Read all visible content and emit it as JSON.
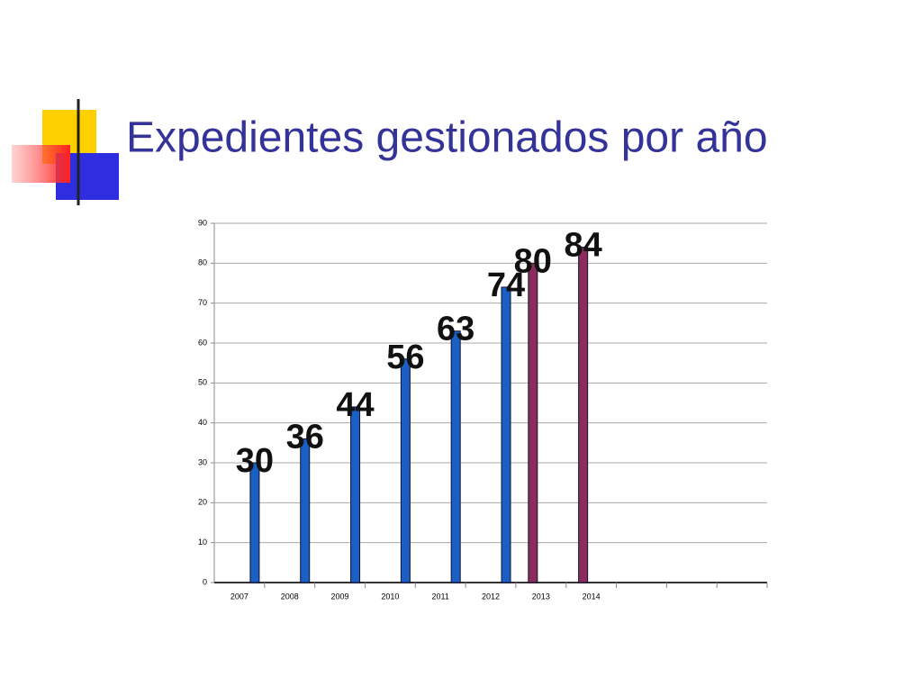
{
  "chart_data": {
    "type": "bar",
    "title": "Expedientes gestionados por año",
    "categories": [
      "2007",
      "2008",
      "2009",
      "2010",
      "2011",
      "2012",
      "2013",
      "2014",
      null,
      null,
      null
    ],
    "series": [
      {
        "color": "#8b2d5c",
        "values": [
          null,
          null,
          null,
          null,
          null,
          null,
          80,
          84,
          null,
          null,
          null
        ]
      },
      {
        "color": "#1a5fc4",
        "values": [
          30,
          36,
          44,
          56,
          63,
          74,
          null,
          null,
          null,
          null,
          null
        ]
      }
    ],
    "ylim": [
      0,
      90
    ],
    "yticks": [
      0,
      10,
      20,
      30,
      40,
      50,
      60,
      70,
      80,
      90
    ],
    "grid": true
  }
}
